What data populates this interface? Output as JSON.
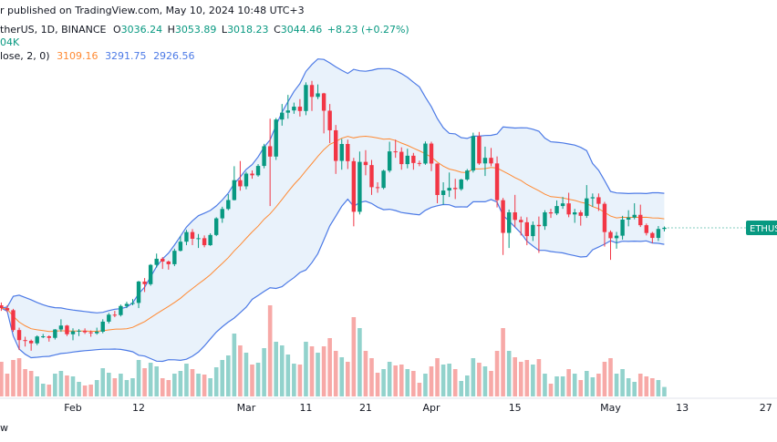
{
  "header": {
    "published": "r published on TradingView.com, May 10, 2024 10:48 UTC+3",
    "symbol": "therUS, 1D, BINANCE",
    "ohlc": [
      {
        "label": "O",
        "value": 3036.24
      },
      {
        "label": "H",
        "value": 3053.89
      },
      {
        "label": "L",
        "value": 3018.23
      },
      {
        "label": "C",
        "value": 3044.46
      }
    ],
    "change": "+8.23 (+0.27%)",
    "volume": "04K",
    "bands_legend": "lose, 2, 0)",
    "bands_values": [
      3109.16,
      3291.75,
      2926.56
    ],
    "footer": "w"
  },
  "chart_data": {
    "type": "candlestick",
    "up_color": "#089981",
    "down_color": "#f23645",
    "volume_up_color": "#92d2cc",
    "volume_down_color": "#f7a9a7",
    "band_color": "#4c7ae6",
    "basis_color": "#ff8a33",
    "band_fill": "#e9f2fb",
    "price_label": "ETHUS",
    "ylim": [
      1825,
      4674
    ],
    "volume_lim": [
      0,
      1100
    ],
    "categories": [
      null,
      null,
      null,
      null,
      null,
      null,
      null,
      null,
      null,
      null,
      null,
      null,
      "Feb",
      null,
      null,
      null,
      null,
      null,
      null,
      null,
      null,
      null,
      null,
      "12",
      null,
      null,
      null,
      null,
      null,
      null,
      null,
      null,
      null,
      null,
      null,
      null,
      null,
      null,
      null,
      null,
      null,
      "Mar",
      null,
      null,
      null,
      null,
      null,
      null,
      null,
      null,
      null,
      "11",
      null,
      null,
      null,
      null,
      null,
      null,
      null,
      null,
      null,
      "21",
      null,
      null,
      null,
      null,
      null,
      null,
      null,
      null,
      null,
      null,
      "Apr",
      null,
      null,
      null,
      null,
      null,
      null,
      null,
      null,
      null,
      null,
      null,
      null,
      null,
      "15",
      null,
      null,
      null,
      null,
      null,
      null,
      null,
      null,
      null,
      null,
      null,
      null,
      null,
      null,
      null,
      "May",
      null,
      null,
      null,
      null,
      null,
      null,
      null,
      null,
      null,
      null,
      null,
      "13",
      null,
      null,
      null,
      null,
      null,
      null,
      null,
      null,
      null,
      null,
      null,
      null,
      null,
      "27",
      null
    ],
    "open": [
      2490,
      2470,
      2455,
      2313,
      2241,
      2236,
      2218,
      2267,
      2268,
      2257,
      2317,
      2345,
      2283,
      2304,
      2308,
      2297,
      2290,
      2301,
      2373,
      2423,
      2420,
      2485,
      2500,
      2507,
      2660,
      2641,
      2779,
      2823,
      2803,
      2784,
      2880,
      2945,
      3014,
      2966,
      2970,
      2920,
      2993,
      3112,
      3179,
      3243,
      3385,
      3341,
      3432,
      3420,
      3487,
      3628,
      3554,
      3819,
      3868,
      3884,
      3911,
      3880,
      4066,
      3981,
      4006,
      3882,
      3742,
      3523,
      3644,
      3521,
      3159,
      3516,
      3493,
      3335,
      3330,
      3453,
      3591,
      3588,
      3500,
      3560,
      3508,
      3504,
      3647,
      3504,
      3279,
      3311,
      3330,
      3321,
      3390,
      3454,
      3700,
      3505,
      3545,
      3505,
      3242,
      3008,
      3155,
      3101,
      3084,
      2985,
      3065,
      3056,
      3155,
      3147,
      3200,
      3219,
      3140,
      3155,
      3130,
      3255,
      3263,
      3216,
      3014,
      2970,
      2988,
      3103,
      3118,
      3137,
      3063,
      3007,
      2972,
      3036.24,
      null,
      null,
      null,
      null,
      null,
      null,
      null,
      null,
      null,
      null,
      null,
      null,
      null,
      null,
      null,
      null,
      null,
      null
    ],
    "high": [
      2510,
      2490,
      2465,
      2330,
      2265,
      2245,
      2275,
      2285,
      2275,
      2320,
      2390,
      2350,
      2325,
      2320,
      2325,
      2310,
      2330,
      2390,
      2435,
      2450,
      2495,
      2515,
      2535,
      2665,
      2685,
      2785,
      2860,
      2835,
      2810,
      2895,
      2985,
      3030,
      3035,
      3000,
      2990,
      3005,
      3120,
      3195,
      3285,
      3485,
      3522,
      3445,
      3455,
      3500,
      3645,
      3825,
      3830,
      3930,
      3995,
      3940,
      3965,
      4085,
      4095,
      4070,
      4010,
      3930,
      3780,
      3680,
      3675,
      3545,
      3590,
      3600,
      3530,
      3370,
      3460,
      3660,
      3675,
      3620,
      3610,
      3580,
      3525,
      3662,
      3660,
      3505,
      3370,
      3440,
      3395,
      3395,
      3465,
      3725,
      3730,
      3625,
      3615,
      3555,
      3258,
      3175,
      3280,
      3125,
      3120,
      3090,
      3125,
      3170,
      3180,
      3240,
      3265,
      3295,
      3180,
      3170,
      3350,
      3290,
      3290,
      3230,
      3025,
      3015,
      3130,
      3170,
      3220,
      3210,
      3075,
      3015,
      3057,
      3053.89,
      null,
      null,
      null,
      null,
      null,
      null,
      null,
      null,
      null,
      null,
      null,
      null,
      null,
      null,
      null,
      null,
      null,
      null
    ],
    "low": [
      2450,
      2440,
      2300,
      2170,
      2195,
      2165,
      2205,
      2255,
      2230,
      2245,
      2300,
      2270,
      2240,
      2270,
      2285,
      2265,
      2280,
      2290,
      2360,
      2405,
      2410,
      2470,
      2490,
      2470,
      2585,
      2630,
      2760,
      2750,
      2745,
      2770,
      2875,
      2920,
      2920,
      2900,
      2905,
      2915,
      2985,
      3080,
      3170,
      3240,
      3310,
      3320,
      3395,
      3410,
      3470,
      3200,
      3530,
      3775,
      3825,
      3860,
      3840,
      3850,
      3880,
      3965,
      3720,
      3650,
      3430,
      3460,
      3465,
      3055,
      3140,
      3420,
      3280,
      3295,
      3320,
      3440,
      3545,
      3460,
      3470,
      3460,
      3485,
      3495,
      3450,
      3220,
      3210,
      3265,
      3250,
      3310,
      3380,
      3440,
      3495,
      3415,
      3485,
      3190,
      2850,
      2900,
      3050,
      2990,
      2920,
      2950,
      2865,
      3030,
      3115,
      3135,
      3180,
      3120,
      3080,
      3060,
      3115,
      3195,
      3165,
      2910,
      2815,
      2895,
      2960,
      3055,
      3105,
      3050,
      2990,
      2935,
      2950,
      3018.23,
      null,
      null,
      null,
      null,
      null,
      null,
      null,
      null,
      null,
      null,
      null,
      null,
      null,
      null,
      null,
      null,
      null,
      null
    ],
    "close": [
      2470,
      2455,
      2313,
      2241,
      2236,
      2218,
      2267,
      2268,
      2257,
      2317,
      2345,
      2283,
      2304,
      2308,
      2297,
      2290,
      2301,
      2373,
      2423,
      2420,
      2485,
      2500,
      2507,
      2660,
      2641,
      2779,
      2823,
      2803,
      2784,
      2880,
      2945,
      3014,
      2966,
      2970,
      2920,
      2993,
      3112,
      3179,
      3243,
      3385,
      3341,
      3432,
      3420,
      3487,
      3628,
      3554,
      3819,
      3868,
      3884,
      3911,
      3880,
      4066,
      3981,
      4006,
      3882,
      3742,
      3523,
      3644,
      3521,
      3159,
      3516,
      3493,
      3335,
      3330,
      3453,
      3591,
      3588,
      3500,
      3560,
      3508,
      3504,
      3647,
      3504,
      3279,
      3311,
      3330,
      3321,
      3390,
      3454,
      3700,
      3505,
      3545,
      3505,
      3242,
      3008,
      3155,
      3101,
      3084,
      2985,
      3065,
      3056,
      3155,
      3147,
      3200,
      3219,
      3140,
      3155,
      3130,
      3255,
      3263,
      3216,
      3014,
      2970,
      2988,
      3103,
      3118,
      3137,
      3063,
      3007,
      2972,
      3036.22,
      3044.46,
      null,
      null,
      null,
      null,
      null,
      null,
      null,
      null,
      null,
      null,
      null,
      null,
      null,
      null,
      null,
      null,
      null,
      null
    ],
    "volume": [
      380,
      250,
      400,
      420,
      300,
      280,
      220,
      140,
      130,
      250,
      280,
      230,
      220,
      160,
      120,
      130,
      180,
      310,
      260,
      200,
      250,
      180,
      200,
      400,
      310,
      370,
      330,
      200,
      180,
      250,
      280,
      360,
      300,
      250,
      240,
      200,
      320,
      400,
      450,
      690,
      560,
      480,
      350,
      370,
      530,
      1000,
      600,
      560,
      460,
      360,
      350,
      600,
      550,
      480,
      550,
      640,
      500,
      430,
      380,
      870,
      750,
      500,
      420,
      260,
      300,
      380,
      340,
      350,
      300,
      280,
      150,
      250,
      330,
      420,
      350,
      360,
      300,
      170,
      230,
      420,
      370,
      330,
      280,
      500,
      750,
      500,
      430,
      380,
      400,
      350,
      410,
      250,
      140,
      220,
      220,
      300,
      250,
      180,
      280,
      210,
      250,
      380,
      420,
      250,
      300,
      200,
      160,
      250,
      220,
      200,
      180,
      104,
      null,
      null,
      null,
      null,
      null,
      null,
      null,
      null,
      null,
      null,
      null,
      null,
      null,
      null,
      null,
      null,
      null,
      null
    ]
  }
}
